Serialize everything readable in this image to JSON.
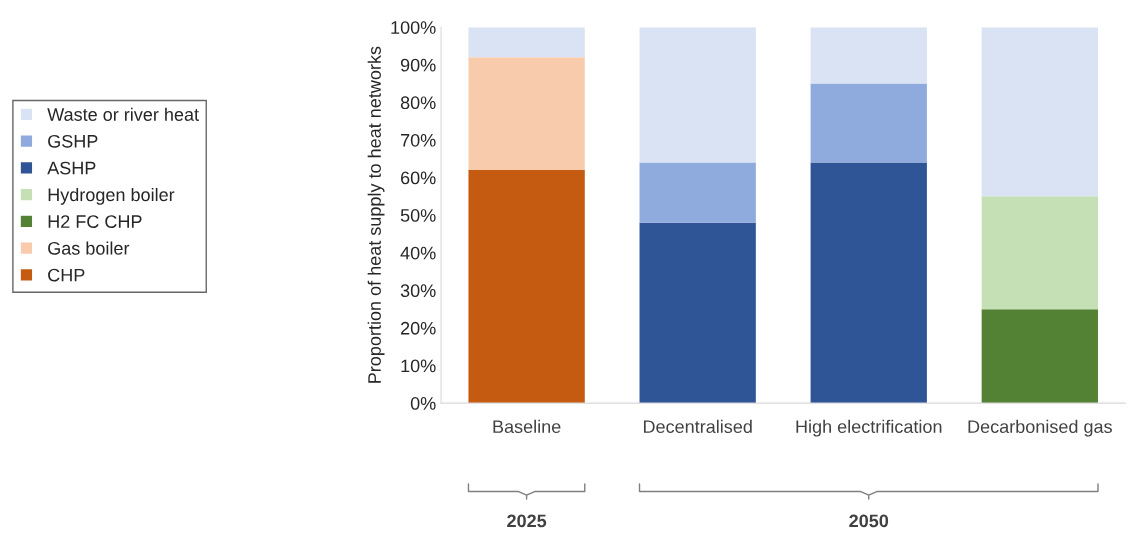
{
  "chart_data": {
    "type": "bar",
    "stacked": true,
    "ylabel": "Proportion of heat supply to heat networks",
    "categories": [
      "Baseline",
      "Decentralised",
      "High electrification",
      "Decarbonised gas"
    ],
    "series": [
      {
        "name": "CHP",
        "color": "#c55a11",
        "values": [
          62,
          null,
          null,
          null
        ]
      },
      {
        "name": "Gas boiler",
        "color": "#f8cbad",
        "values": [
          30,
          null,
          null,
          null
        ]
      },
      {
        "name": "H2 FC CHP",
        "color": "#548235",
        "values": [
          null,
          null,
          null,
          25
        ]
      },
      {
        "name": "Hydrogen boiler",
        "color": "#c5e0b4",
        "values": [
          null,
          null,
          null,
          30
        ]
      },
      {
        "name": "ASHP",
        "color": "#2f5597",
        "values": [
          null,
          48,
          64,
          null
        ]
      },
      {
        "name": "GSHP",
        "color": "#8faadc",
        "values": [
          null,
          16,
          21,
          null
        ]
      },
      {
        "name": "Waste or river heat",
        "color": "#dae3f3",
        "values": [
          8,
          36,
          15,
          45
        ]
      }
    ],
    "ylim": [
      0,
      100
    ],
    "yticks": [
      {
        "value": 0,
        "label": "0%"
      },
      {
        "value": 10,
        "label": "10%"
      },
      {
        "value": 20,
        "label": "20%"
      },
      {
        "value": 30,
        "label": "30%"
      },
      {
        "value": 40,
        "label": "40%"
      },
      {
        "value": 50,
        "label": "50%"
      },
      {
        "value": 60,
        "label": "60%"
      },
      {
        "value": 70,
        "label": "70%"
      },
      {
        "value": 80,
        "label": "80%"
      },
      {
        "value": 90,
        "label": "90%"
      },
      {
        "value": 100,
        "label": "100%"
      }
    ],
    "annotations": [
      "2025",
      "2050"
    ],
    "grid": false,
    "legend": "left"
  }
}
